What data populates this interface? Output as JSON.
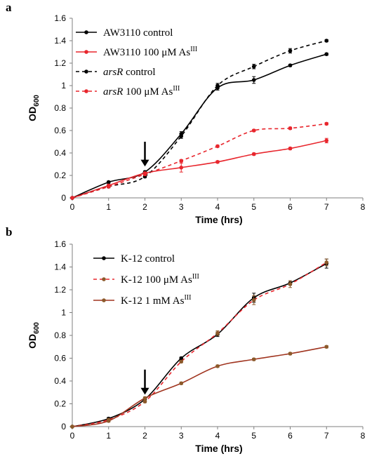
{
  "chart_data": [
    {
      "panel_label": "a",
      "type": "line",
      "xlabel": "Time (hrs)",
      "ylabel": "OD",
      "ylabel_sub": "600",
      "xlim": [
        0,
        8
      ],
      "ylim": [
        0,
        1.6
      ],
      "xticks": [
        "0",
        "1",
        "2",
        "3",
        "4",
        "5",
        "6",
        "7",
        "8"
      ],
      "yticks": [
        "0",
        "0.2",
        "0.4",
        "0.6",
        "0.8",
        "1",
        "1.2",
        "1.4",
        "1.6"
      ],
      "arrow_at_x": 2,
      "legend_position": "top-left",
      "series": [
        {
          "name": "AW3110 control",
          "legend_parts": [
            {
              "text": "AW3110 control",
              "style": "normal"
            }
          ],
          "color": "#000000",
          "dashed": false,
          "x": [
            0,
            1,
            2,
            3,
            4,
            5,
            6,
            7
          ],
          "y": [
            0,
            0.14,
            0.23,
            0.57,
            0.98,
            1.05,
            1.18,
            1.28
          ],
          "err": [
            0,
            0.01,
            0.01,
            0.02,
            0.02,
            0.03,
            0.01,
            0.01
          ]
        },
        {
          "name": "AW3110 100 μM AsIII",
          "legend_parts": [
            {
              "text": "AW3110 100 μM As",
              "style": "normal"
            },
            {
              "text": "III",
              "style": "sup"
            }
          ],
          "color": "#e8262d",
          "dashed": false,
          "x": [
            0,
            1,
            2,
            3,
            4,
            5,
            6,
            7
          ],
          "y": [
            0,
            0.11,
            0.22,
            0.27,
            0.32,
            0.39,
            0.44,
            0.51
          ],
          "err": [
            0,
            0.01,
            0.01,
            0.04,
            0.01,
            0.01,
            0.01,
            0.02
          ]
        },
        {
          "name": "arsR control",
          "legend_parts": [
            {
              "text": "arsR",
              "style": "italic"
            },
            {
              "text": " control",
              "style": "normal"
            }
          ],
          "color": "#000000",
          "dashed": true,
          "x": [
            0,
            1,
            2,
            3,
            4,
            5,
            6,
            7
          ],
          "y": [
            0,
            0.1,
            0.19,
            0.55,
            1.0,
            1.17,
            1.31,
            1.4
          ],
          "err": [
            0,
            0.01,
            0.01,
            0.02,
            0.02,
            0.02,
            0.02,
            0.01
          ]
        },
        {
          "name": "arsR 100 μM AsIII",
          "legend_parts": [
            {
              "text": "arsR",
              "style": "italic"
            },
            {
              "text": " 100 μM As",
              "style": "normal"
            },
            {
              "text": "III",
              "style": "sup"
            }
          ],
          "color": "#e8262d",
          "dashed": true,
          "x": [
            0,
            1,
            2,
            3,
            4,
            5,
            6,
            7
          ],
          "y": [
            0,
            0.1,
            0.21,
            0.33,
            0.46,
            0.6,
            0.62,
            0.66
          ],
          "err": [
            0,
            0.01,
            0.01,
            0.01,
            0.01,
            0.01,
            0.01,
            0.01
          ]
        }
      ]
    },
    {
      "panel_label": "b",
      "type": "line",
      "xlabel": "Time (hrs)",
      "ylabel": "OD",
      "ylabel_sub": "600",
      "xlim": [
        0,
        8
      ],
      "ylim": [
        0,
        1.6
      ],
      "xticks": [
        "0",
        "1",
        "2",
        "3",
        "4",
        "5",
        "6",
        "7",
        "8"
      ],
      "yticks": [
        "0",
        "0.2",
        "0.4",
        "0.6",
        "0.8",
        "1",
        "1.2",
        "1.4",
        "1.6"
      ],
      "arrow_at_x": 2,
      "legend_position": "top-left",
      "series": [
        {
          "name": "K-12 control",
          "legend_parts": [
            {
              "text": "K-12 control",
              "style": "normal"
            }
          ],
          "color": "#000000",
          "dashed": false,
          "x": [
            0,
            1,
            2,
            3,
            4,
            5,
            6,
            7
          ],
          "y": [
            0,
            0.07,
            0.24,
            0.6,
            0.81,
            1.13,
            1.26,
            1.43
          ],
          "err": [
            0,
            0.01,
            0.01,
            0.01,
            0.02,
            0.04,
            0.02,
            0.04
          ]
        },
        {
          "name": "K-12 100 μM AsIII",
          "legend_parts": [
            {
              "text": "K-12 100 μM As",
              "style": "normal"
            },
            {
              "text": "III",
              "style": "sup"
            }
          ],
          "color": "#e8262d",
          "dashed": true,
          "marker_color": "#8c5a2b",
          "x": [
            0,
            1,
            2,
            3,
            4,
            5,
            6,
            7
          ],
          "y": [
            0,
            0.06,
            0.22,
            0.57,
            0.82,
            1.11,
            1.25,
            1.44
          ],
          "err": [
            0,
            0.01,
            0.01,
            0.01,
            0.02,
            0.04,
            0.03,
            0.03
          ]
        },
        {
          "name": "K-12 1 mM AsIII",
          "legend_parts": [
            {
              "text": "K-12 1 mM As",
              "style": "normal"
            },
            {
              "text": "III",
              "style": "sup"
            }
          ],
          "color": "#a0341f",
          "dashed": false,
          "marker_color": "#8c5a2b",
          "x": [
            0,
            1,
            2,
            3,
            4,
            5,
            6,
            7
          ],
          "y": [
            0,
            0.05,
            0.25,
            0.38,
            0.53,
            0.59,
            0.64,
            0.7
          ],
          "err": [
            0,
            0.01,
            0.01,
            0.01,
            0.01,
            0.01,
            0.01,
            0.01
          ]
        }
      ]
    }
  ]
}
